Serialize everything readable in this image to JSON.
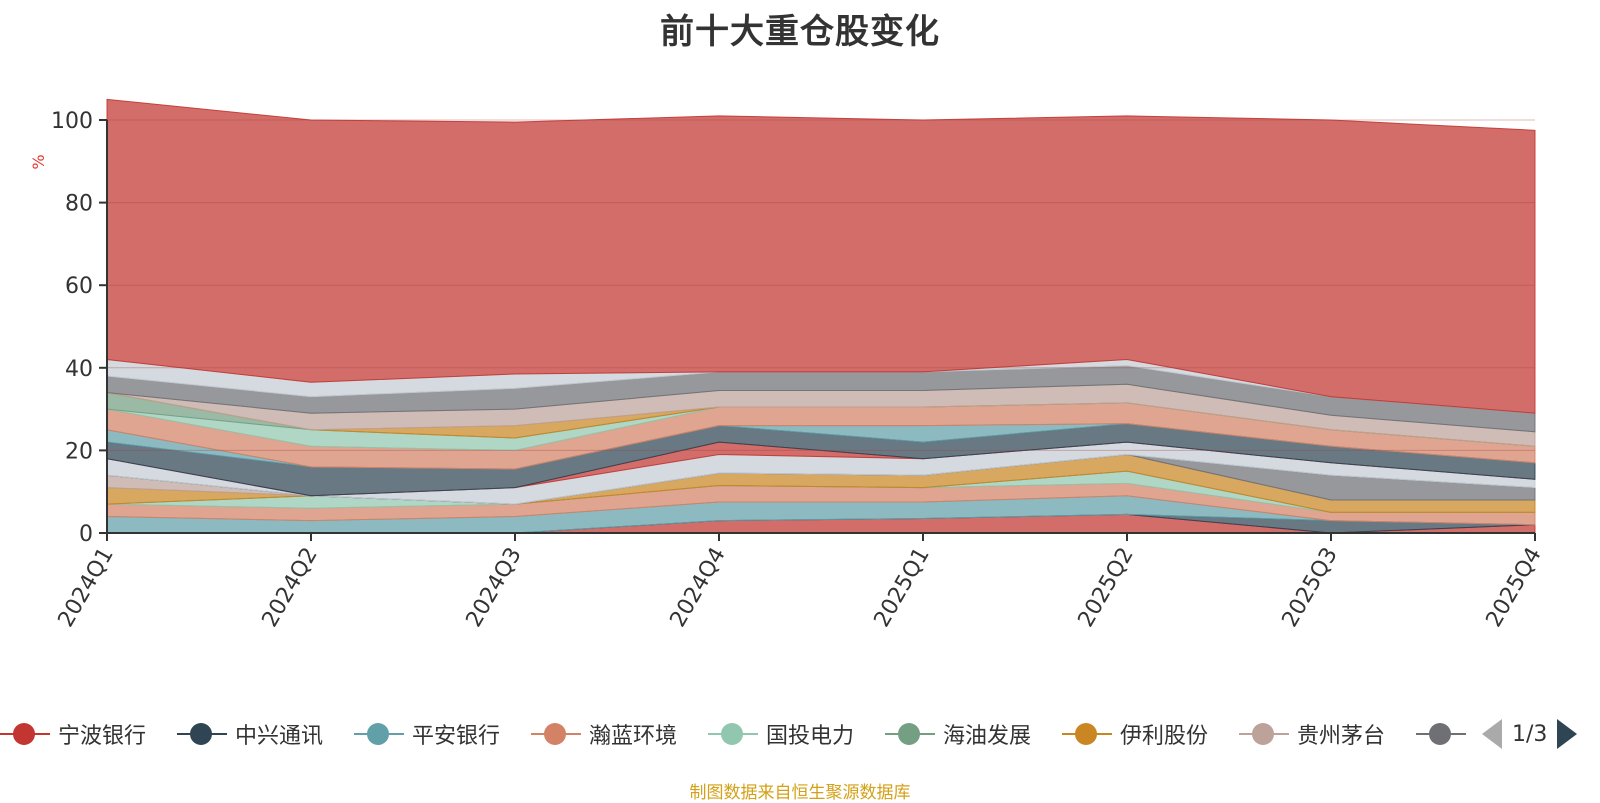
{
  "title": "前十大重仓股变化",
  "source_note": "制图数据来自恒生聚源数据库",
  "legend_pager": "1/3",
  "chart_data": {
    "type": "area",
    "stacked": true,
    "title": "前十大重仓股变化",
    "ylabel": "%",
    "ylim": [
      0,
      100
    ],
    "yticks": [
      0,
      20,
      40,
      60,
      80,
      100
    ],
    "grid": true,
    "legend_position": "bottom",
    "categories": [
      "2024Q1",
      "2024Q2",
      "2024Q3",
      "2024Q4",
      "2025Q1",
      "2025Q2",
      "2025Q3",
      "2025Q4"
    ],
    "series": [
      {
        "name": "宁波银行",
        "color": "#c23531",
        "values": [
          0,
          0,
          0,
          3,
          3.5,
          4.5,
          0,
          2
        ]
      },
      {
        "name": "中兴通讯",
        "color": "#2f4554",
        "values": [
          0,
          0,
          0,
          0,
          0,
          0,
          3,
          0
        ]
      },
      {
        "name": "平安银行",
        "color": "#61a0a8",
        "values": [
          4,
          3,
          4,
          4.5,
          4,
          4.5,
          0,
          0
        ]
      },
      {
        "name": "瀚蓝环境",
        "color": "#d48265",
        "values": [
          3,
          3,
          3,
          4,
          3.5,
          3,
          2,
          3
        ]
      },
      {
        "name": "国投电力",
        "color": "#91c7ae",
        "values": [
          0,
          3,
          0,
          0,
          0,
          3,
          0,
          0
        ]
      },
      {
        "name": "海油发展",
        "color": "#749f83",
        "values": [
          0,
          0,
          0,
          0,
          0,
          0,
          0,
          0
        ]
      },
      {
        "name": "伊利股份",
        "color": "#ca8622",
        "values": [
          4,
          0,
          0,
          3,
          3,
          4,
          3,
          3
        ]
      },
      {
        "name": "贵州茅台",
        "color": "#bda29a",
        "values": [
          3,
          0,
          0,
          0,
          0,
          0,
          0,
          0
        ]
      },
      {
        "name": "",
        "color": "#6e7074",
        "values": [
          0,
          0,
          0,
          0,
          0,
          0,
          6,
          3
        ]
      },
      {
        "name": "",
        "color": "#546570",
        "values": [
          0,
          0,
          0,
          0,
          0,
          0,
          0,
          0
        ]
      },
      {
        "name": "",
        "color": "#c4ccd3",
        "values": [
          4,
          0,
          4,
          4.5,
          4,
          3,
          3,
          2
        ]
      },
      {
        "name": "",
        "color": "#c23531",
        "values": [
          0,
          0,
          0,
          3,
          0,
          0,
          0,
          0
        ]
      },
      {
        "name": "",
        "color": "#2f4554",
        "values": [
          4,
          7,
          4.5,
          4,
          4,
          4.5,
          4,
          4
        ]
      },
      {
        "name": "",
        "color": "#61a0a8",
        "values": [
          3,
          0,
          0,
          0,
          4,
          0,
          0,
          0
        ]
      },
      {
        "name": "",
        "color": "#d48265",
        "values": [
          5,
          5,
          4.5,
          4.5,
          4.5,
          5,
          4,
          4
        ]
      },
      {
        "name": "",
        "color": "#91c7ae",
        "values": [
          0,
          4,
          3,
          0,
          0,
          0,
          0,
          0
        ]
      },
      {
        "name": "",
        "color": "#749f83",
        "values": [
          4,
          0,
          0,
          0,
          0,
          0,
          0,
          0
        ]
      },
      {
        "name": "",
        "color": "#ca8622",
        "values": [
          0,
          0,
          3,
          0,
          0,
          0,
          0,
          0
        ]
      },
      {
        "name": "",
        "color": "#bda29a",
        "values": [
          0,
          4,
          4,
          4,
          4,
          4.5,
          3.5,
          3.5
        ]
      },
      {
        "name": "",
        "color": "#6e7074",
        "values": [
          4,
          4,
          5,
          4.5,
          4.5,
          4.5,
          4.5,
          4.5
        ]
      },
      {
        "name": "",
        "color": "#c4ccd3",
        "values": [
          4,
          3.5,
          3.5,
          0,
          0,
          1.5,
          0,
          0
        ]
      },
      {
        "name": "",
        "color": "#c23531",
        "values": [
          63,
          63.5,
          61,
          62,
          61,
          59,
          67,
          68.5
        ]
      }
    ]
  }
}
